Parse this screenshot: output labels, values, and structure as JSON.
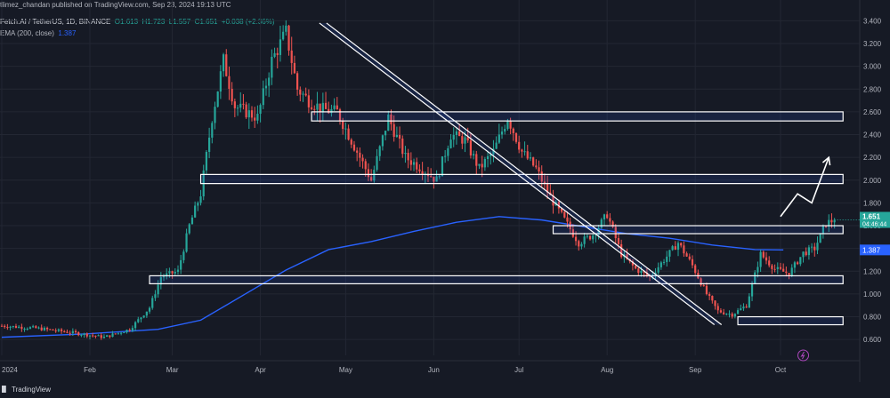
{
  "header": {
    "publisher": "tlimez_chandan published on TradingView.com, Sep 23, 2024 19:13 UTC",
    "symbol": "Fetch.AI / TetherUS, 1D, BINANCE",
    "open": "O1.613",
    "high": "H1.723",
    "low": "L1.557",
    "close": "C1.651",
    "change": "+0.038 (+2.36%)",
    "ema_label": "EMA (200, close)",
    "ema_value": "1.387"
  },
  "footer": {
    "brand": "TradingView"
  },
  "colors": {
    "background": "#161a25",
    "up": "#26a69a",
    "down": "#ef5350",
    "ema": "#2962ff",
    "zone": "#ffffff",
    "grid": "#232733"
  },
  "chart_data": {
    "type": "candlestick",
    "x_labels": [
      "2024",
      "Feb",
      "Mar",
      "Apr",
      "May",
      "Jun",
      "Jul",
      "Aug",
      "Sep",
      "Oct"
    ],
    "y_ticks": [
      "3.400",
      "3.200",
      "3.000",
      "2.800",
      "2.600",
      "2.400",
      "2.200",
      "2.000",
      "1.800",
      "1.600",
      "1.400",
      "1.200",
      "1.000",
      "0.800",
      "0.600"
    ],
    "ylim": [
      0.5,
      3.52
    ],
    "x_range_days": [
      0,
      300
    ],
    "last_price": "1.651",
    "countdown": "04:46:44",
    "ema_price": "1.387",
    "grid": true,
    "support_resistance_zones": [
      {
        "from_day": 109,
        "to_day": 296,
        "low": 2.52,
        "high": 2.6
      },
      {
        "from_day": 70,
        "to_day": 296,
        "low": 1.97,
        "high": 2.05
      },
      {
        "from_day": 194,
        "to_day": 296,
        "low": 1.53,
        "high": 1.6
      },
      {
        "from_day": 52,
        "to_day": 296,
        "low": 1.09,
        "high": 1.16
      },
      {
        "from_day": 259,
        "to_day": 296,
        "low": 0.73,
        "high": 0.8
      }
    ],
    "descending_channel": [
      {
        "day": 113,
        "price": 3.38
      },
      {
        "day": 252,
        "price": 0.73
      }
    ],
    "projection_arrow": [
      {
        "day": 274,
        "price": 1.68
      },
      {
        "day": 280,
        "price": 1.88
      },
      {
        "day": 285,
        "price": 1.8
      },
      {
        "day": 291,
        "price": 2.2
      }
    ],
    "ema": [
      {
        "day": 0,
        "price": 0.62
      },
      {
        "day": 30,
        "price": 0.65
      },
      {
        "day": 55,
        "price": 0.69
      },
      {
        "day": 70,
        "price": 0.77
      },
      {
        "day": 85,
        "price": 0.99
      },
      {
        "day": 100,
        "price": 1.21
      },
      {
        "day": 115,
        "price": 1.39
      },
      {
        "day": 130,
        "price": 1.46
      },
      {
        "day": 145,
        "price": 1.55
      },
      {
        "day": 160,
        "price": 1.63
      },
      {
        "day": 175,
        "price": 1.68
      },
      {
        "day": 190,
        "price": 1.65
      },
      {
        "day": 205,
        "price": 1.59
      },
      {
        "day": 220,
        "price": 1.53
      },
      {
        "day": 235,
        "price": 1.49
      },
      {
        "day": 250,
        "price": 1.43
      },
      {
        "day": 265,
        "price": 1.39
      },
      {
        "day": 275,
        "price": 1.387
      }
    ],
    "price_path": [
      {
        "day": 0,
        "price": 0.72
      },
      {
        "day": 12,
        "price": 0.7
      },
      {
        "day": 25,
        "price": 0.66
      },
      {
        "day": 36,
        "price": 0.62
      },
      {
        "day": 45,
        "price": 0.69
      },
      {
        "day": 52,
        "price": 0.88
      },
      {
        "day": 56,
        "price": 1.15
      },
      {
        "day": 62,
        "price": 1.2
      },
      {
        "day": 66,
        "price": 1.6
      },
      {
        "day": 70,
        "price": 1.88
      },
      {
        "day": 74,
        "price": 2.55
      },
      {
        "day": 78,
        "price": 3.05
      },
      {
        "day": 82,
        "price": 2.65
      },
      {
        "day": 86,
        "price": 2.6
      },
      {
        "day": 90,
        "price": 2.55
      },
      {
        "day": 95,
        "price": 3.05
      },
      {
        "day": 100,
        "price": 3.3
      },
      {
        "day": 104,
        "price": 2.8
      },
      {
        "day": 108,
        "price": 2.7
      },
      {
        "day": 113,
        "price": 2.62
      },
      {
        "day": 118,
        "price": 2.6
      },
      {
        "day": 124,
        "price": 2.3
      },
      {
        "day": 130,
        "price": 2.0
      },
      {
        "day": 136,
        "price": 2.55
      },
      {
        "day": 142,
        "price": 2.2
      },
      {
        "day": 148,
        "price": 2.1
      },
      {
        "day": 153,
        "price": 2.0
      },
      {
        "day": 158,
        "price": 2.4
      },
      {
        "day": 163,
        "price": 2.35
      },
      {
        "day": 168,
        "price": 2.1
      },
      {
        "day": 173,
        "price": 2.25
      },
      {
        "day": 178,
        "price": 2.55
      },
      {
        "day": 183,
        "price": 2.25
      },
      {
        "day": 188,
        "price": 2.1
      },
      {
        "day": 193,
        "price": 1.85
      },
      {
        "day": 198,
        "price": 1.65
      },
      {
        "day": 203,
        "price": 1.45
      },
      {
        "day": 208,
        "price": 1.52
      },
      {
        "day": 213,
        "price": 1.7
      },
      {
        "day": 218,
        "price": 1.35
      },
      {
        "day": 223,
        "price": 1.22
      },
      {
        "day": 228,
        "price": 1.15
      },
      {
        "day": 233,
        "price": 1.3
      },
      {
        "day": 238,
        "price": 1.45
      },
      {
        "day": 243,
        "price": 1.25
      },
      {
        "day": 248,
        "price": 1.0
      },
      {
        "day": 252,
        "price": 0.85
      },
      {
        "day": 257,
        "price": 0.82
      },
      {
        "day": 262,
        "price": 0.9
      },
      {
        "day": 267,
        "price": 1.35
      },
      {
        "day": 272,
        "price": 1.22
      },
      {
        "day": 277,
        "price": 1.18
      },
      {
        "day": 282,
        "price": 1.36
      },
      {
        "day": 286,
        "price": 1.4
      },
      {
        "day": 290,
        "price": 1.62
      },
      {
        "day": 293,
        "price": 1.651
      }
    ]
  }
}
